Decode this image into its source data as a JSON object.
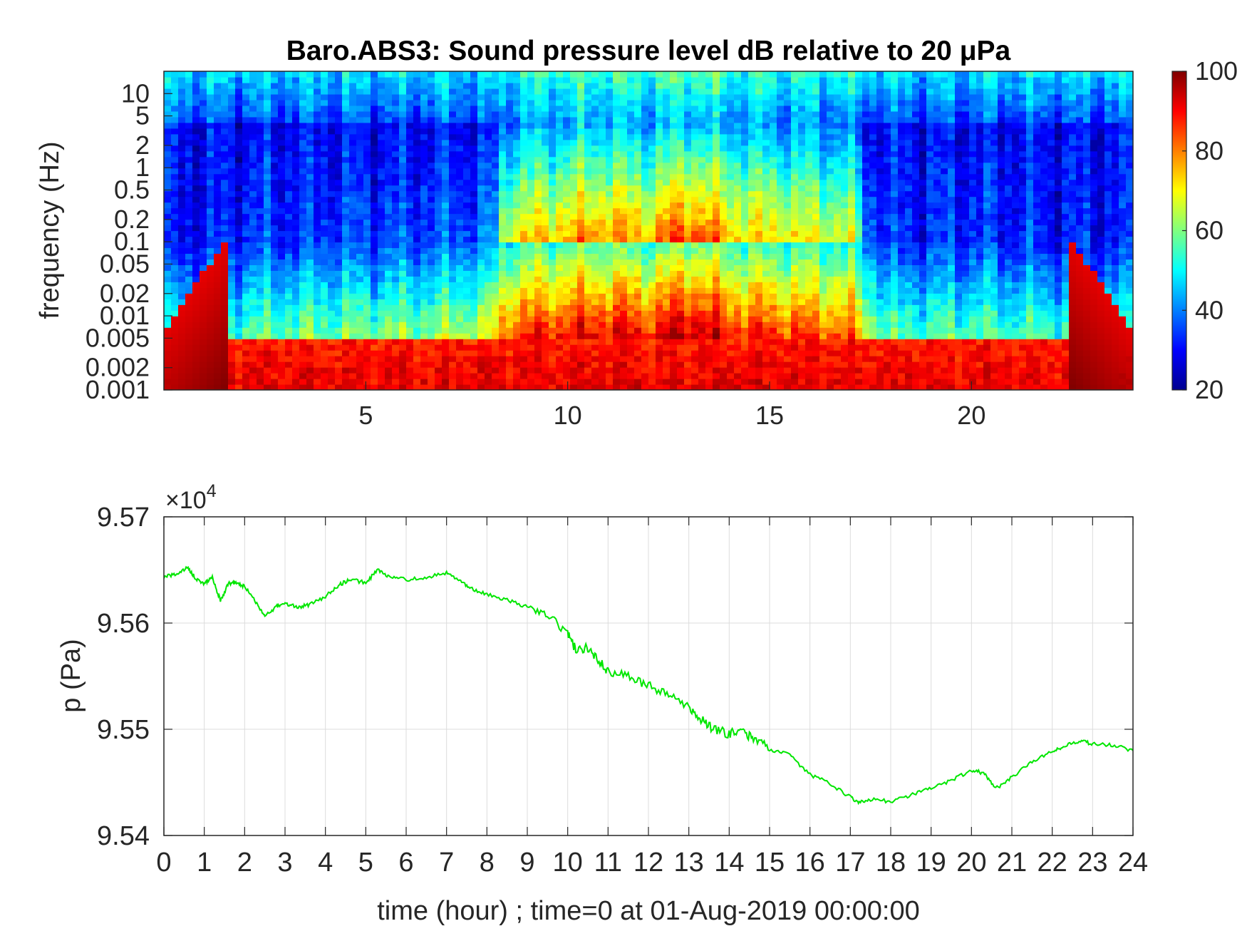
{
  "chart_data": [
    {
      "type": "heatmap",
      "title": "Baro.ABS3: Sound pressure level dB relative to 20 μPa",
      "ylabel": "frequency (Hz)",
      "xlabel": "",
      "yscale": "log",
      "xlim": [
        0,
        24
      ],
      "ylim": [
        0.001,
        20
      ],
      "xticks": [
        5,
        10,
        15,
        20
      ],
      "yticks": [
        0.001,
        0.002,
        0.005,
        0.01,
        0.02,
        0.05,
        0.1,
        0.2,
        0.5,
        1,
        2,
        5,
        10
      ],
      "colorbar": {
        "colormap": "jet",
        "clim": [
          20,
          100
        ],
        "ticks": [
          20,
          40,
          60,
          80,
          100
        ]
      },
      "description_of_field": {
        "time_hours": [
          0,
          2,
          4,
          6,
          8,
          8.5,
          10,
          11,
          12,
          13,
          14,
          15,
          16,
          17,
          17.5,
          18,
          20,
          22,
          24
        ],
        "typical_level_0p01Hz_dB": [
          45,
          52,
          54,
          55,
          60,
          80,
          85,
          87,
          84,
          92,
          84,
          82,
          80,
          78,
          60,
          50,
          52,
          50,
          48
        ],
        "low_freq_band_level_dB": 88,
        "high_freq_band_level_dB": 48
      }
    },
    {
      "type": "line",
      "title": "",
      "xlabel": "time (hour) ; time=0 at 01-Aug-2019 00:00:00",
      "ylabel": "p (Pa)",
      "y_exponent_label": "×10",
      "y_exponent": "4",
      "xlim": [
        0,
        24
      ],
      "ylim": [
        9.54,
        9.57
      ],
      "xticks": [
        0,
        1,
        2,
        3,
        4,
        5,
        6,
        7,
        8,
        9,
        10,
        11,
        12,
        13,
        14,
        15,
        16,
        17,
        18,
        19,
        20,
        21,
        22,
        23,
        24
      ],
      "yticks": [
        9.54,
        9.55,
        9.56,
        9.57
      ],
      "grid": true,
      "series": [
        {
          "color": "#00e600",
          "x": [
            0,
            0.3,
            0.6,
            0.8,
            1.0,
            1.2,
            1.4,
            1.6,
            1.8,
            2.0,
            2.3,
            2.5,
            2.8,
            3.0,
            3.3,
            3.6,
            4.0,
            4.3,
            4.6,
            5.0,
            5.3,
            5.6,
            6.0,
            6.5,
            7.0,
            7.3,
            7.6,
            8.0,
            8.5,
            9.0,
            9.5,
            10.0,
            10.2,
            10.5,
            10.8,
            11.0,
            11.5,
            12.0,
            12.5,
            13.0,
            13.3,
            13.6,
            14.0,
            14.3,
            14.6,
            15.0,
            15.5,
            16.0,
            16.5,
            17.0,
            17.2,
            17.5,
            18.0,
            18.5,
            19.0,
            19.5,
            20.0,
            20.3,
            20.6,
            21.0,
            21.5,
            22.0,
            22.3,
            22.7,
            23.0,
            23.5,
            24.0
          ],
          "y": [
            9.5643,
            9.5646,
            9.5652,
            9.5641,
            9.5637,
            9.5643,
            9.5621,
            9.5637,
            9.5638,
            9.5634,
            9.5619,
            9.5606,
            9.5616,
            9.5618,
            9.5615,
            9.5617,
            9.5625,
            9.5635,
            9.5641,
            9.5638,
            9.565,
            9.5643,
            9.5641,
            9.5643,
            9.5647,
            9.564,
            9.5633,
            9.5627,
            9.5622,
            9.5615,
            9.5607,
            9.559,
            9.5575,
            9.5577,
            9.5563,
            9.5555,
            9.5551,
            9.5541,
            9.5533,
            9.5522,
            9.551,
            9.55,
            9.5496,
            9.5497,
            9.5492,
            9.5481,
            9.5476,
            9.5457,
            9.5449,
            9.5436,
            9.5431,
            9.5434,
            9.5432,
            9.5438,
            9.5444,
            9.5452,
            9.5461,
            9.5459,
            9.5444,
            9.5455,
            9.547,
            9.5479,
            9.5484,
            9.5489,
            9.5486,
            9.5485,
            9.548
          ]
        }
      ]
    }
  ]
}
